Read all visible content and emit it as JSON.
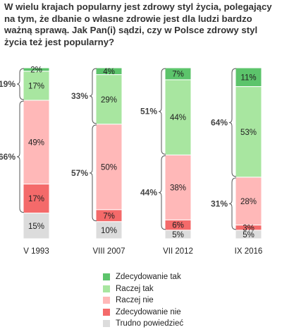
{
  "title_lines": [
    "W wielu krajach popularny jest zdrowy styl życia, polegający",
    " na tym, że dbanie o własne zdrowie jest dla ludzi bardzo",
    "ważną sprawą. Jak Pan(i) sądzi, czy w Polsce zdrowy styl",
    "życia też jest popularny?"
  ],
  "chart_data": {
    "type": "bar",
    "stacked": true,
    "percent": true,
    "title": "W wielu krajach popularny jest zdrowy styl życia, polegający na tym, że dbanie o własne zdrowie jest dla ludzi bardzo ważną sprawą. Jak Pan(i) sądzi, czy w Polsce zdrowy styl życia też jest popularny?",
    "categories": [
      "V 1993",
      "VIII 2007",
      "VII 2012",
      "IX 2016"
    ],
    "ylim": [
      0,
      100
    ],
    "series": [
      {
        "name": "Zdecydowanie tak",
        "color": "#5cc46b",
        "values": [
          2,
          4,
          7,
          11
        ],
        "labels": [
          "2%",
          "4%",
          "7%",
          "11%"
        ]
      },
      {
        "name": "Raczej tak",
        "color": "#a8e6a0",
        "values": [
          17,
          29,
          44,
          53
        ],
        "labels": [
          "17%",
          "29%",
          "44%",
          "53%"
        ]
      },
      {
        "name": "Raczej nie",
        "color": "#ffb8b8",
        "values": [
          49,
          50,
          38,
          28
        ],
        "labels": [
          "49%",
          "50%",
          "38%",
          "28%"
        ]
      },
      {
        "name": "Zdecydowanie nie",
        "color": "#f46a6a",
        "values": [
          17,
          7,
          6,
          3
        ],
        "labels": [
          "17%",
          "7%",
          "6%",
          "3%"
        ]
      },
      {
        "name": "Trudno powiedzieć",
        "color": "#dcdcdc",
        "values": [
          15,
          10,
          5,
          5
        ],
        "labels": [
          "15%",
          "10%",
          "5%",
          "5%"
        ]
      }
    ],
    "totals": {
      "yes": [
        "19%",
        "33%",
        "51%",
        "64%"
      ],
      "no": [
        "66%",
        "57%",
        "44%",
        "31%"
      ]
    },
    "legend_position": "bottom"
  }
}
